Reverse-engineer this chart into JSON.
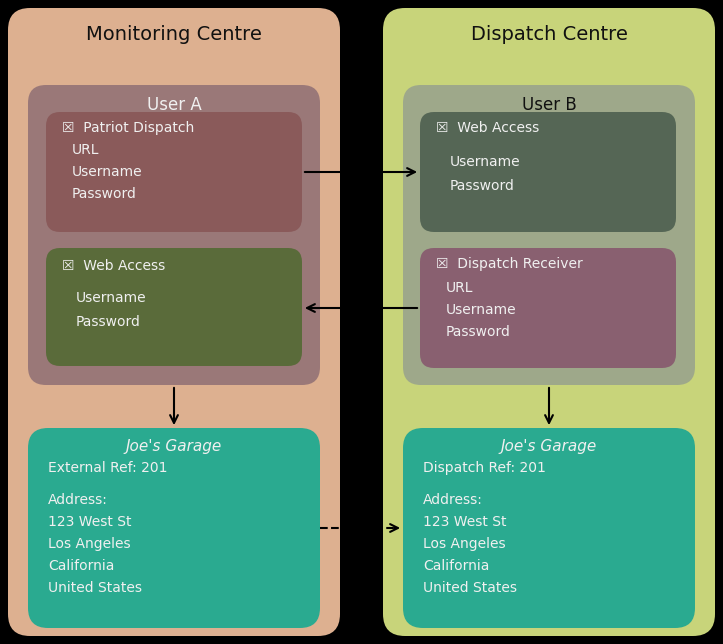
{
  "fig_width": 7.23,
  "fig_height": 6.44,
  "bg_color": "#000000",
  "left_panel_color": "#ddb090",
  "right_panel_color": "#c8d47a",
  "left_user_box_color": "#9a7878",
  "right_user_box_color": "#9ea88a",
  "patriot_dispatch_color": "#8a5a5a",
  "web_access_left_color": "#5a6b3a",
  "web_access_right_color": "#556655",
  "dispatch_receiver_color": "#896070",
  "garage_teal": "#2aaa90",
  "text_dark": "#111111",
  "text_light": "#f0f0f0",
  "title_left": "Monitoring Centre",
  "title_right": "Dispatch Centre",
  "user_a_label": "User A",
  "user_b_label": "User B",
  "pd_title": "☒  Patriot Dispatch",
  "pd_lines": [
    "URL",
    "Username",
    "Password"
  ],
  "wa_left_title": "☒  Web Access",
  "wa_left_lines": [
    "Username",
    "Password"
  ],
  "wa_right_title": "☒  Web Access",
  "wa_right_lines": [
    "Username",
    "Password"
  ],
  "dr_title": "☒  Dispatch Receiver",
  "dr_lines": [
    "URL",
    "Username",
    "Password"
  ],
  "gl_title": "Joe's Garage",
  "gl_lines": [
    "External Ref: 201",
    "",
    "Address:",
    "123 West St",
    "Los Angeles",
    "California",
    "United States"
  ],
  "gr_title": "Joe's Garage",
  "gr_lines": [
    "Dispatch Ref: 201",
    "",
    "Address:",
    "123 West St",
    "Los Angeles",
    "California",
    "United States"
  ]
}
